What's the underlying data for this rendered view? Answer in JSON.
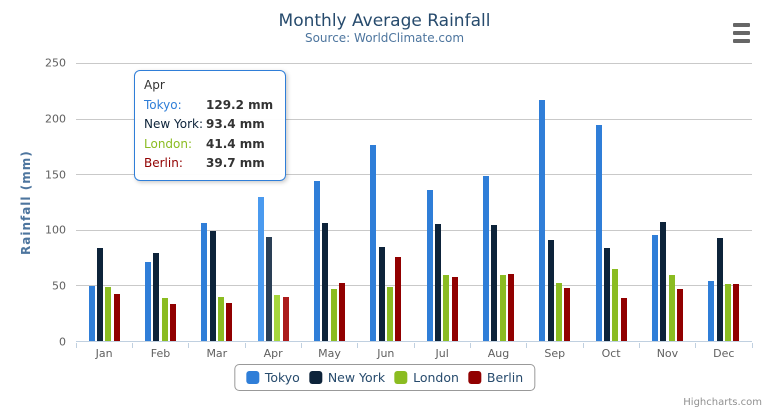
{
  "header": {
    "title": "Monthly Average Rainfall",
    "subtitle": "Source: WorldClimate.com"
  },
  "yaxis": {
    "title": "Rainfall (mm)"
  },
  "chart_data": {
    "type": "bar",
    "title": "Monthly Average Rainfall",
    "subtitle": "Source: WorldClimate.com",
    "xlabel": "",
    "ylabel": "Rainfall (mm)",
    "ylim": [
      0,
      250
    ],
    "yticks": [
      0,
      50,
      100,
      150,
      200,
      250
    ],
    "grid": true,
    "legend_position": "bottom",
    "categories": [
      "Jan",
      "Feb",
      "Mar",
      "Apr",
      "May",
      "Jun",
      "Jul",
      "Aug",
      "Sep",
      "Oct",
      "Nov",
      "Dec"
    ],
    "series": [
      {
        "name": "Tokyo",
        "color": "#2f7ed8",
        "hover_color": "#4a9aef",
        "values": [
          49.9,
          71.5,
          106.4,
          129.2,
          144.0,
          176.0,
          135.6,
          148.5,
          216.4,
          194.1,
          95.6,
          54.4
        ]
      },
      {
        "name": "New York",
        "color": "#0d233a",
        "hover_color": "#2a3f55",
        "values": [
          83.6,
          78.8,
          98.5,
          93.4,
          106.0,
          84.5,
          105.0,
          104.3,
          91.2,
          83.5,
          106.6,
          92.3
        ]
      },
      {
        "name": "London",
        "color": "#8bbc21",
        "hover_color": "#a6d73c",
        "values": [
          48.9,
          38.8,
          39.3,
          41.4,
          47.0,
          48.3,
          59.0,
          59.6,
          52.4,
          65.2,
          59.3,
          51.2
        ]
      },
      {
        "name": "Berlin",
        "color": "#910000",
        "hover_color": "#ac1b1b",
        "values": [
          42.4,
          33.2,
          34.5,
          39.7,
          52.6,
          75.5,
          57.4,
          60.4,
          47.6,
          39.1,
          46.8,
          51.1
        ]
      }
    ],
    "highlighted_category": "Apr"
  },
  "tooltip": {
    "header": "Apr",
    "rows": [
      {
        "label": "Tokyo:",
        "color": "#2f7ed8",
        "value": "129.2 mm"
      },
      {
        "label": "New York:",
        "color": "#0d233a",
        "value": "93.4 mm"
      },
      {
        "label": "London:",
        "color": "#8bbc21",
        "value": "41.4 mm"
      },
      {
        "label": "Berlin:",
        "color": "#910000",
        "value": "39.7 mm"
      }
    ]
  },
  "credits": {
    "label": "Highcharts.com"
  },
  "colors": {
    "title": "#274b6d",
    "subtitle": "#4d759e",
    "axis_labels": "#606060",
    "gridline": "#C9C9C9",
    "axis_line": "#C0D0E0",
    "legend_text": "#274b6d",
    "tooltip_border": "#2f7ed8"
  }
}
